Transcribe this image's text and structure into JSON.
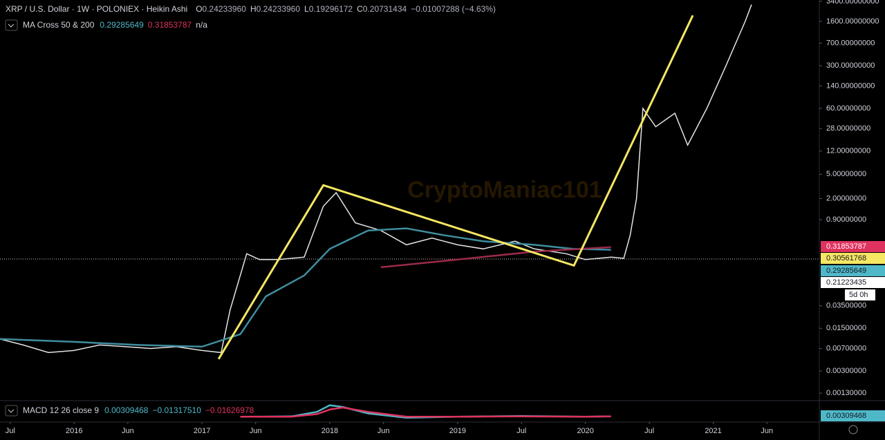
{
  "header": {
    "symbol": "XRP / U.S. Dollar · 1W · POLONIEX · Heikin Ashi",
    "ohlc": [
      {
        "key": "O",
        "value": "0.24233960"
      },
      {
        "key": "H",
        "value": "0.24233960"
      },
      {
        "key": "L",
        "value": "0.19296172"
      },
      {
        "key": "C",
        "value": "0.20731434"
      }
    ],
    "change": "−0.01007288 (−4.63%)"
  },
  "chart_data": [
    {
      "type": "line",
      "watermark": "CryptoManiac101",
      "legend": "MA Cross 50 & 200",
      "legend_values": [
        {
          "text": "0.29285649",
          "color": "#4fb8c8"
        },
        {
          "text": "0.31853787",
          "color": "#e0325f"
        },
        {
          "text": "n/a",
          "color": "#d1d4dc"
        }
      ],
      "log_scale": true,
      "xlim": [
        2015.42,
        2021.83
      ],
      "ylim": [
        0.00098,
        3576
      ],
      "xticks": [
        {
          "value": 2015.5,
          "label": "Jul"
        },
        {
          "value": 2016,
          "label": "2016"
        },
        {
          "value": 2016.42,
          "label": "Jun"
        },
        {
          "value": 2017,
          "label": "2017"
        },
        {
          "value": 2017.42,
          "label": "Jun"
        },
        {
          "value": 2018,
          "label": "2018"
        },
        {
          "value": 2018.42,
          "label": "Jun"
        },
        {
          "value": 2019,
          "label": "2019"
        },
        {
          "value": 2019.5,
          "label": "Jul"
        },
        {
          "value": 2020,
          "label": "2020"
        },
        {
          "value": 2020.5,
          "label": "Jul"
        },
        {
          "value": 2021,
          "label": "2021"
        },
        {
          "value": 2021.42,
          "label": "Jun"
        }
      ],
      "yticks": [
        {
          "value": 3400,
          "label": "3400.00000000"
        },
        {
          "value": 1600,
          "label": "1600.00000000"
        },
        {
          "value": 700,
          "label": "700.00000000"
        },
        {
          "value": 300,
          "label": "300.00000000"
        },
        {
          "value": 140,
          "label": "140.00000000"
        },
        {
          "value": 60,
          "label": "60.00000000"
        },
        {
          "value": 28,
          "label": "28.00000000"
        },
        {
          "value": 12,
          "label": "12.00000000"
        },
        {
          "value": 5,
          "label": "5.00000000"
        },
        {
          "value": 2,
          "label": "2.00000000"
        },
        {
          "value": 0.9,
          "label": "0.90000000"
        },
        {
          "value": 0.035,
          "label": "0.03500000"
        },
        {
          "value": 0.015,
          "label": "0.01500000"
        },
        {
          "value": 0.007,
          "label": "0.00700000"
        },
        {
          "value": 0.003,
          "label": "0.00300000"
        },
        {
          "value": 0.0013,
          "label": "0.00130000"
        }
      ],
      "series": [
        {
          "name": "XRP",
          "color": "#e6e6e6",
          "x": [
            2015.42,
            2015.6,
            2015.8,
            2016.0,
            2016.2,
            2016.4,
            2016.6,
            2016.8,
            2017.0,
            2017.15,
            2017.22,
            2017.35,
            2017.45,
            2017.6,
            2017.8,
            2017.95,
            2018.05,
            2018.2,
            2018.4,
            2018.6,
            2018.8,
            2019.0,
            2019.2,
            2019.45,
            2019.6,
            2019.85,
            2020.0,
            2020.2,
            2020.3,
            2020.35,
            2020.4,
            2020.45,
            2020.55,
            2020.7,
            2020.8,
            2020.95,
            2021.1,
            2021.25,
            2021.3
          ],
          "values": [
            0.01,
            0.008,
            0.006,
            0.0065,
            0.008,
            0.0075,
            0.007,
            0.0075,
            0.0065,
            0.006,
            0.03,
            0.25,
            0.2,
            0.2,
            0.22,
            1.5,
            2.5,
            0.8,
            0.6,
            0.35,
            0.45,
            0.35,
            0.3,
            0.4,
            0.3,
            0.25,
            0.2,
            0.22,
            0.21,
            0.5,
            2,
            60,
            30,
            50,
            15,
            60,
            300,
            1600,
            3000
          ]
        },
        {
          "name": "MA 50",
          "color": "#3f8ea0",
          "x": [
            2015.42,
            2016.0,
            2016.5,
            2017.0,
            2017.3,
            2017.5,
            2017.8,
            2018.0,
            2018.3,
            2018.6,
            2018.9,
            2019.2,
            2019.6,
            2019.9,
            2020.2
          ],
          "values": [
            0.01,
            0.009,
            0.008,
            0.0075,
            0.012,
            0.05,
            0.11,
            0.3,
            0.6,
            0.65,
            0.5,
            0.4,
            0.35,
            0.3,
            0.29
          ]
        },
        {
          "name": "MA 200",
          "color": "#9c2b4a",
          "x": [
            2018.4,
            2019.0,
            2019.6,
            2020.2
          ],
          "values": [
            0.15,
            0.2,
            0.27,
            0.32
          ]
        },
        {
          "name": "Trend",
          "color": "#f5e663",
          "x": [
            2017.13,
            2017.95,
            2019.91,
            2020.84
          ],
          "values": [
            0.0047,
            3.3,
            0.16,
            2000
          ]
        }
      ],
      "price_tags": [
        {
          "text": "0.31853787",
          "color": "#e0325f",
          "text_color": "#ffffff"
        },
        {
          "text": "0.30561768",
          "color": "#f5e663",
          "text_color": "#131722"
        },
        {
          "text": "0.29285649",
          "color": "#4fb8c8",
          "text_color": "#131722"
        },
        {
          "text": "0.21223435",
          "color": "#ffffff",
          "text_color": "#131722"
        },
        {
          "text": "5d 0h",
          "color": "#ffffff",
          "text_color": "#131722"
        }
      ]
    },
    {
      "type": "line",
      "legend": "MACD 12 26 close 9",
      "legend_values": [
        {
          "text": "0.00309468",
          "color": "#4fb8c8"
        },
        {
          "text": "−0.01317510",
          "color": "#4fb8c8"
        },
        {
          "text": "−0.01626978",
          "color": "#e0325f"
        }
      ],
      "price_tag": "0.00309468",
      "xlim": [
        2015.42,
        2021.83
      ],
      "ylim": [
        -0.1,
        0.45
      ],
      "series": [
        {
          "name": "MACD",
          "color": "#4fb8c8",
          "x": [
            2017.3,
            2017.7,
            2017.9,
            2018.0,
            2018.1,
            2018.3,
            2018.6,
            2019.0,
            2019.5,
            2020.0,
            2020.2
          ],
          "values": [
            0.0,
            0.01,
            0.15,
            0.35,
            0.3,
            0.1,
            -0.03,
            0.0,
            0.02,
            0.0,
            0.01
          ]
        },
        {
          "name": "Signal",
          "color": "#e0325f",
          "x": [
            2017.3,
            2017.7,
            2017.9,
            2018.0,
            2018.1,
            2018.3,
            2018.6,
            2019.0,
            2019.5,
            2020.0,
            2020.2
          ],
          "values": [
            0.0,
            0.0,
            0.08,
            0.22,
            0.28,
            0.15,
            0.0,
            0.0,
            0.01,
            0.0,
            0.01
          ]
        }
      ]
    }
  ]
}
